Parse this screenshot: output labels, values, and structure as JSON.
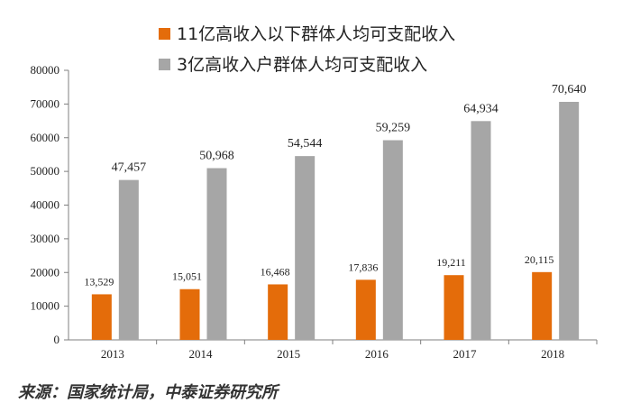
{
  "chart_data": {
    "type": "bar",
    "title": "",
    "xlabel": "",
    "ylabel": "",
    "categories": [
      "2013",
      "2014",
      "2015",
      "2016",
      "2017",
      "2018"
    ],
    "series": [
      {
        "name": "11亿高收入以下群体人均可支配收入",
        "color": "#E46C0A",
        "values": [
          13529,
          15051,
          16468,
          17836,
          19211,
          20115
        ],
        "labels": [
          "13,529",
          "15,051",
          "16,468",
          "17,836",
          "19,211",
          "20,115"
        ]
      },
      {
        "name": "3亿高收入户群体人均可支配收入",
        "color": "#A6A6A6",
        "values": [
          47457,
          50968,
          54544,
          59259,
          64934,
          70640
        ],
        "labels": [
          "47,457",
          "50,968",
          "54,544",
          "59,259",
          "64,934",
          "70,640"
        ]
      }
    ],
    "ylim": [
      0,
      80000
    ],
    "yticks": [
      0,
      10000,
      20000,
      30000,
      40000,
      50000,
      60000,
      70000,
      80000
    ],
    "legend_position": "top-left",
    "grid": false
  },
  "source": "来源：国家统计局，中泰证券研究所"
}
